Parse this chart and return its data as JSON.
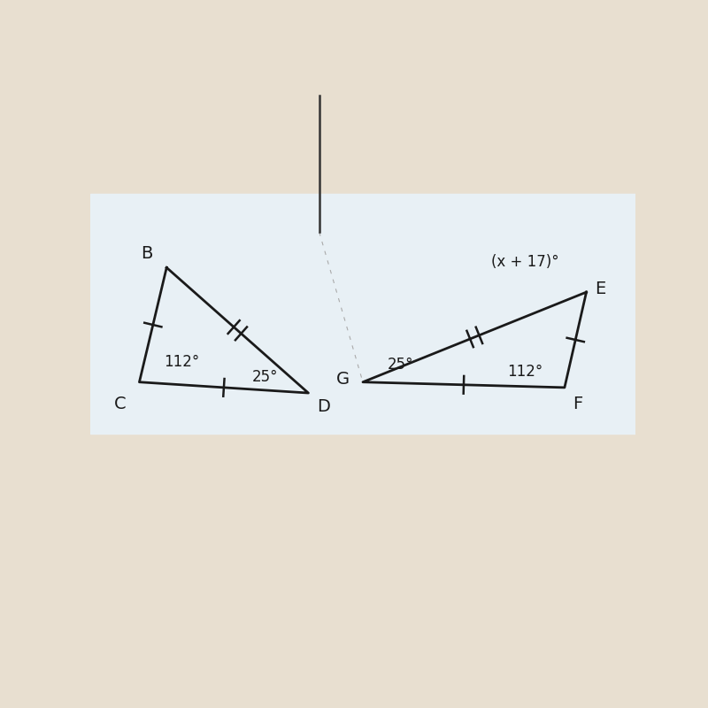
{
  "bg_color": "#e8dfd0",
  "panel_color": "#e8f0f5",
  "line_color": "#1a1a1a",
  "line_width": 2.0,
  "font_size_labels": 14,
  "font_size_angles": 12,
  "tri1": {
    "B": [
      0.14,
      0.665
    ],
    "C": [
      0.09,
      0.455
    ],
    "D": [
      0.4,
      0.435
    ],
    "label_B": "B",
    "label_C": "C",
    "label_D": "D",
    "angle_C_text": "112°",
    "angle_D_text": "25°"
  },
  "tri2": {
    "E": [
      0.91,
      0.62
    ],
    "G": [
      0.5,
      0.455
    ],
    "F": [
      0.87,
      0.445
    ],
    "label_E": "E",
    "label_G": "G",
    "label_F": "F",
    "angle_E_text": "(x + 17)°",
    "angle_G_text": "25°",
    "angle_F_text": "112°"
  },
  "notebook_line": [
    [
      0.42,
      0.98
    ],
    [
      0.42,
      0.73
    ]
  ],
  "diagonal_line": [
    [
      0.09,
      0.73
    ],
    [
      0.5,
      0.455
    ]
  ]
}
